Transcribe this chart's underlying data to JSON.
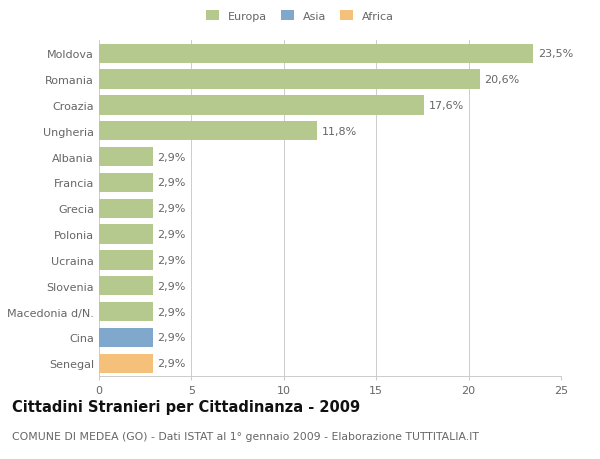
{
  "categories": [
    "Senegal",
    "Cina",
    "Macedonia d/N.",
    "Slovenia",
    "Ucraina",
    "Polonia",
    "Grecia",
    "Francia",
    "Albania",
    "Ungheria",
    "Croazia",
    "Romania",
    "Moldova"
  ],
  "values": [
    2.9,
    2.9,
    2.9,
    2.9,
    2.9,
    2.9,
    2.9,
    2.9,
    2.9,
    11.8,
    17.6,
    20.6,
    23.5
  ],
  "colors": [
    "#f5c07a",
    "#7fa8cc",
    "#b5c98e",
    "#b5c98e",
    "#b5c98e",
    "#b5c98e",
    "#b5c98e",
    "#b5c98e",
    "#b5c98e",
    "#b5c98e",
    "#b5c98e",
    "#b5c98e",
    "#b5c98e"
  ],
  "labels": [
    "2,9%",
    "2,9%",
    "2,9%",
    "2,9%",
    "2,9%",
    "2,9%",
    "2,9%",
    "2,9%",
    "2,9%",
    "11,8%",
    "17,6%",
    "20,6%",
    "23,5%"
  ],
  "legend_labels": [
    "Europa",
    "Asia",
    "Africa"
  ],
  "legend_colors": [
    "#b5c98e",
    "#7fa8cc",
    "#f5c07a"
  ],
  "title": "Cittadini Stranieri per Cittadinanza - 2009",
  "subtitle": "COMUNE DI MEDEA (GO) - Dati ISTAT al 1° gennaio 2009 - Elaborazione TUTTITALIA.IT",
  "xlim": [
    0,
    25
  ],
  "xticks": [
    0,
    5,
    10,
    15,
    20,
    25
  ],
  "background_color": "#ffffff",
  "bar_edge_color": "none",
  "grid_color": "#cccccc",
  "text_color": "#666666",
  "label_fontsize": 8.0,
  "title_fontsize": 10.5,
  "subtitle_fontsize": 7.8
}
